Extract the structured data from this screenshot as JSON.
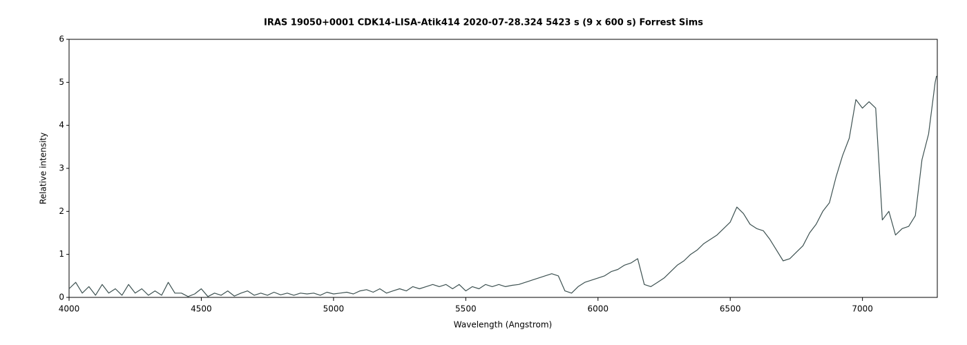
{
  "chart_data": {
    "type": "line",
    "title": "IRAS 19050+0001   CDK14-LISA-Atik414  2020-07-28.324   5423 s (9 x 600 s)   Forrest Sims",
    "x_label": "Wavelength (Angstrom)",
    "y_label": "Relative intensity",
    "xlim": [
      4000,
      7283
    ],
    "ylim": [
      0,
      6
    ],
    "xticks": [
      4000,
      4500,
      5000,
      5500,
      6000,
      6500,
      7000
    ],
    "yticks": [
      0,
      1,
      2,
      3,
      4,
      5,
      6
    ],
    "grid": false,
    "series": [
      {
        "color": "#3c5050",
        "x": [
          4000,
          4025,
          4050,
          4075,
          4100,
          4125,
          4150,
          4175,
          4200,
          4225,
          4250,
          4275,
          4300,
          4325,
          4350,
          4375,
          4400,
          4425,
          4450,
          4475,
          4500,
          4525,
          4550,
          4575,
          4600,
          4625,
          4650,
          4675,
          4700,
          4725,
          4750,
          4775,
          4800,
          4825,
          4850,
          4875,
          4900,
          4925,
          4950,
          4975,
          5000,
          5025,
          5050,
          5075,
          5100,
          5125,
          5150,
          5175,
          5200,
          5225,
          5250,
          5275,
          5300,
          5325,
          5350,
          5375,
          5400,
          5425,
          5450,
          5475,
          5500,
          5525,
          5550,
          5575,
          5600,
          5625,
          5650,
          5675,
          5700,
          5725,
          5750,
          5775,
          5800,
          5825,
          5850,
          5875,
          5900,
          5925,
          5950,
          5975,
          6000,
          6025,
          6050,
          6075,
          6100,
          6125,
          6150,
          6175,
          6200,
          6225,
          6250,
          6275,
          6300,
          6325,
          6350,
          6375,
          6400,
          6425,
          6450,
          6475,
          6500,
          6525,
          6550,
          6575,
          6600,
          6625,
          6650,
          6675,
          6700,
          6725,
          6750,
          6775,
          6800,
          6825,
          6850,
          6875,
          6900,
          6925,
          6950,
          6975,
          7000,
          7025,
          7050,
          7075,
          7100,
          7125,
          7150,
          7175,
          7200,
          7225,
          7250,
          7275,
          7280
        ],
        "values": [
          0.2,
          0.35,
          0.1,
          0.25,
          0.05,
          0.3,
          0.1,
          0.2,
          0.05,
          0.3,
          0.1,
          0.2,
          0.05,
          0.15,
          0.05,
          0.35,
          0.1,
          0.1,
          0.02,
          0.08,
          0.2,
          0.02,
          0.1,
          0.05,
          0.15,
          0.03,
          0.1,
          0.15,
          0.05,
          0.1,
          0.05,
          0.12,
          0.06,
          0.1,
          0.05,
          0.1,
          0.08,
          0.1,
          0.05,
          0.12,
          0.08,
          0.1,
          0.12,
          0.08,
          0.15,
          0.18,
          0.12,
          0.2,
          0.1,
          0.15,
          0.2,
          0.15,
          0.25,
          0.2,
          0.25,
          0.3,
          0.25,
          0.3,
          0.2,
          0.3,
          0.15,
          0.25,
          0.2,
          0.3,
          0.25,
          0.3,
          0.25,
          0.28,
          0.3,
          0.35,
          0.4,
          0.45,
          0.5,
          0.55,
          0.5,
          0.15,
          0.1,
          0.25,
          0.35,
          0.4,
          0.45,
          0.5,
          0.6,
          0.65,
          0.75,
          0.8,
          0.9,
          0.3,
          0.25,
          0.35,
          0.45,
          0.6,
          0.75,
          0.85,
          1.0,
          1.1,
          1.25,
          1.35,
          1.45,
          1.6,
          1.75,
          2.1,
          1.95,
          1.7,
          1.6,
          1.55,
          1.35,
          1.1,
          0.85,
          0.9,
          1.05,
          1.2,
          1.5,
          1.7,
          2.0,
          2.2,
          2.8,
          3.3,
          3.7,
          4.6,
          4.4,
          4.55,
          4.4,
          1.8,
          2.0,
          1.45,
          1.6,
          1.65,
          1.9,
          3.2,
          3.8,
          5.0,
          5.15
        ]
      }
    ]
  }
}
